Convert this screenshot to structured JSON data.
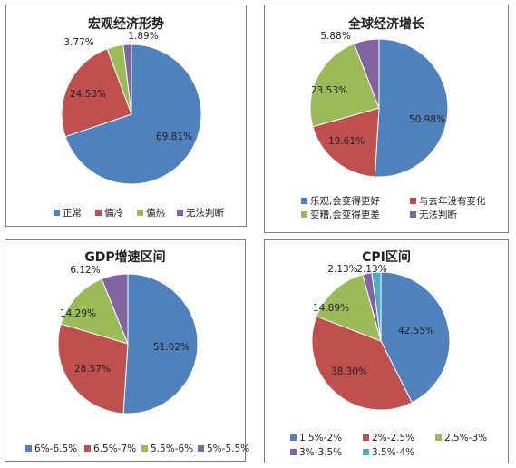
{
  "chart_data": [
    {
      "type": "pie",
      "title": "宏观经济形势",
      "categories": [
        "正常",
        "偏冷",
        "偏热",
        "无法判断"
      ],
      "values": [
        69.81,
        24.53,
        3.77,
        1.89
      ],
      "labels": [
        "69.81%",
        "24.53%",
        "3.77%",
        "1.89%"
      ],
      "colors": [
        "#4f81bd",
        "#c0504d",
        "#9bbb59",
        "#8064a2"
      ],
      "legend": "bottom"
    },
    {
      "type": "pie",
      "title": "全球经济增长",
      "categories": [
        "乐观,会变得更好",
        "与去年没有变化",
        "变糟,会变得更差",
        "无法判断"
      ],
      "values": [
        50.98,
        19.61,
        23.53,
        5.88
      ],
      "labels": [
        "50.98%",
        "19.61%",
        "23.53%",
        "5.88%"
      ],
      "colors": [
        "#4f81bd",
        "#c0504d",
        "#9bbb59",
        "#8064a2"
      ],
      "legend": "bottom"
    },
    {
      "type": "pie",
      "title": "GDP增速区间",
      "categories": [
        "6%-6.5%",
        "6.5%-7%",
        "5.5%-6%",
        "5%-5.5%"
      ],
      "values": [
        51.02,
        28.57,
        14.29,
        6.12
      ],
      "labels": [
        "51.02%",
        "28.57%",
        "14.29%",
        "6.12%"
      ],
      "colors": [
        "#4f81bd",
        "#c0504d",
        "#9bbb59",
        "#8064a2"
      ],
      "legend": "bottom"
    },
    {
      "type": "pie",
      "title": "CPI区间",
      "categories": [
        "1.5%-2%",
        "2%-2.5%",
        "2.5%-3%",
        "3%-3.5%",
        "3.5%-4%"
      ],
      "values": [
        42.55,
        38.3,
        14.89,
        2.13,
        2.13
      ],
      "labels": [
        "42.55%",
        "38.30%",
        "14.89%",
        "2.13%",
        "2.13%"
      ],
      "colors": [
        "#4f81bd",
        "#c0504d",
        "#9bbb59",
        "#8064a2",
        "#4bacc6"
      ],
      "legend": "bottom"
    }
  ]
}
